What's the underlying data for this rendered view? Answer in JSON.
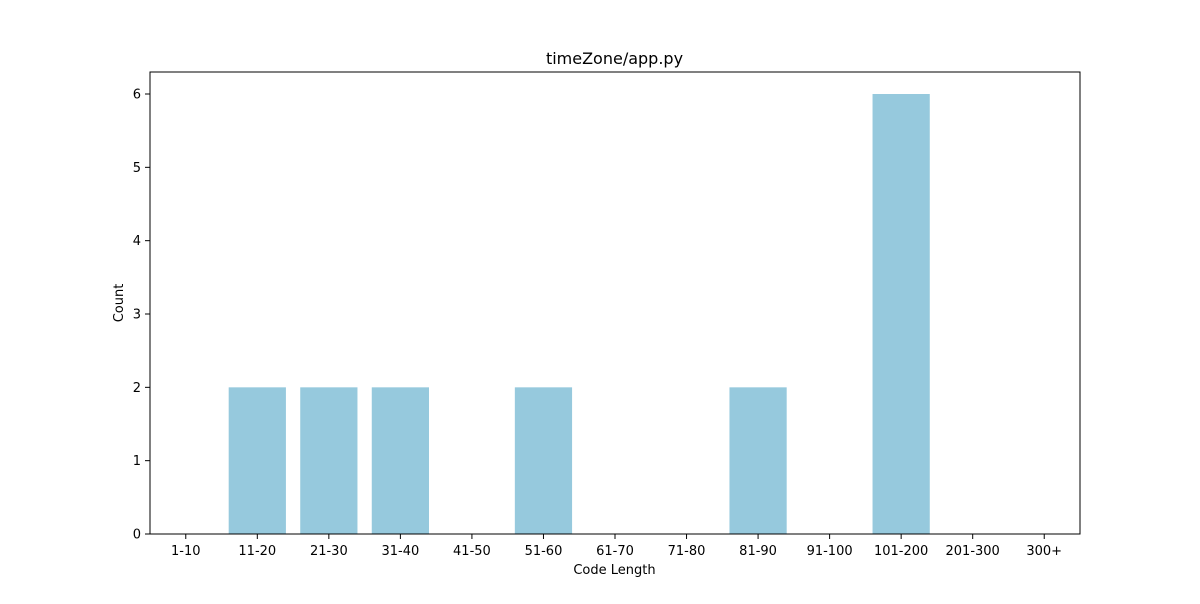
{
  "chart_data": {
    "type": "bar",
    "title": "timeZone/app.py",
    "xlabel": "Code Length",
    "ylabel": "Count",
    "categories": [
      "1-10",
      "11-20",
      "21-30",
      "31-40",
      "41-50",
      "51-60",
      "61-70",
      "71-80",
      "81-90",
      "91-100",
      "101-200",
      "201-300",
      "300+"
    ],
    "values": [
      0,
      2,
      2,
      2,
      0,
      2,
      0,
      0,
      2,
      0,
      6,
      0,
      0
    ],
    "ylim": [
      0,
      6.3
    ],
    "yticks": [
      0,
      1,
      2,
      3,
      4,
      5,
      6
    ],
    "grid": false,
    "legend": "none",
    "bar_color": "#96c9dd"
  }
}
